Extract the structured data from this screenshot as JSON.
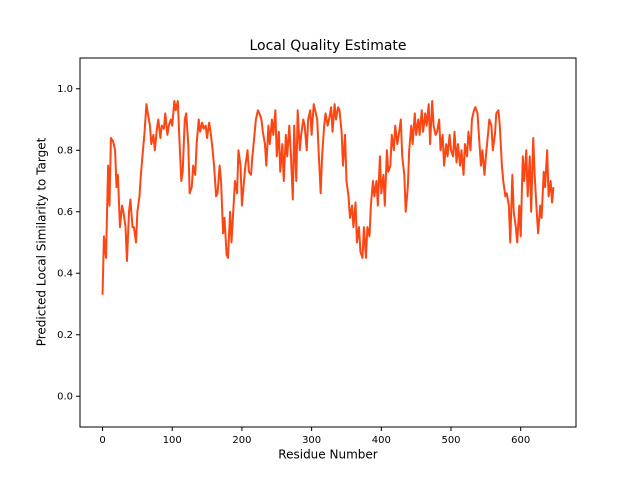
{
  "chart_data": {
    "type": "line",
    "title": "Local Quality Estimate",
    "xlabel": "Residue Number",
    "ylabel": "Predicted Local Similarity to Target",
    "color": "#fc4614",
    "xlim": [
      -32.35,
      679.35
    ],
    "ylim": [
      -0.1,
      1.1
    ],
    "xticks": [
      0,
      100,
      200,
      300,
      400,
      500,
      600
    ],
    "yticks": [
      {
        "value": 0,
        "label": "0.0"
      },
      0.2,
      0.4,
      0.6,
      0.8,
      {
        "value": 1,
        "label": "1.0"
      }
    ],
    "x": [
      0,
      2,
      5,
      8,
      10,
      12,
      15,
      18,
      20,
      22,
      25,
      28,
      30,
      33,
      35,
      38,
      40,
      43,
      45,
      48,
      50,
      53,
      55,
      58,
      60,
      63,
      65,
      68,
      70,
      73,
      75,
      78,
      80,
      83,
      85,
      88,
      90,
      93,
      95,
      98,
      100,
      103,
      105,
      108,
      110,
      113,
      115,
      118,
      120,
      123,
      125,
      128,
      130,
      133,
      135,
      138,
      140,
      143,
      145,
      148,
      150,
      153,
      155,
      158,
      160,
      163,
      165,
      168,
      170,
      173,
      175,
      178,
      180,
      183,
      185,
      188,
      190,
      193,
      195,
      198,
      200,
      203,
      205,
      208,
      210,
      213,
      215,
      218,
      220,
      223,
      225,
      228,
      230,
      233,
      235,
      238,
      240,
      243,
      245,
      248,
      250,
      253,
      255,
      258,
      260,
      263,
      265,
      268,
      270,
      273,
      275,
      278,
      280,
      283,
      285,
      288,
      290,
      293,
      295,
      298,
      300,
      303,
      305,
      308,
      310,
      313,
      315,
      318,
      320,
      323,
      325,
      328,
      330,
      333,
      335,
      338,
      340,
      343,
      345,
      348,
      350,
      353,
      355,
      358,
      360,
      363,
      365,
      368,
      370,
      373,
      375,
      378,
      380,
      383,
      385,
      388,
      390,
      393,
      395,
      398,
      400,
      403,
      405,
      408,
      410,
      413,
      415,
      418,
      420,
      423,
      425,
      428,
      430,
      433,
      435,
      438,
      440,
      443,
      445,
      448,
      450,
      453,
      455,
      458,
      460,
      463,
      465,
      468,
      470,
      473,
      475,
      478,
      480,
      483,
      485,
      488,
      490,
      493,
      495,
      498,
      500,
      503,
      505,
      508,
      510,
      513,
      515,
      518,
      520,
      523,
      525,
      528,
      530,
      533,
      535,
      538,
      540,
      543,
      545,
      548,
      550,
      553,
      555,
      558,
      560,
      563,
      565,
      568,
      570,
      573,
      575,
      578,
      580,
      583,
      585,
      588,
      590,
      593,
      595,
      598,
      600,
      603,
      605,
      608,
      610,
      613,
      615,
      618,
      620,
      623,
      625,
      628,
      630,
      633,
      635,
      638,
      640,
      643,
      645,
      647
    ],
    "values": [
      0.33,
      0.52,
      0.45,
      0.75,
      0.62,
      0.84,
      0.83,
      0.8,
      0.68,
      0.72,
      0.55,
      0.62,
      0.6,
      0.55,
      0.44,
      0.6,
      0.64,
      0.55,
      0.55,
      0.5,
      0.6,
      0.65,
      0.72,
      0.8,
      0.85,
      0.95,
      0.92,
      0.88,
      0.82,
      0.85,
      0.8,
      0.87,
      0.9,
      0.84,
      0.88,
      0.87,
      0.92,
      0.85,
      0.88,
      0.9,
      0.88,
      0.96,
      0.93,
      0.96,
      0.85,
      0.7,
      0.73,
      0.9,
      0.92,
      0.82,
      0.66,
      0.68,
      0.75,
      0.72,
      0.82,
      0.9,
      0.86,
      0.89,
      0.87,
      0.88,
      0.84,
      0.89,
      0.86,
      0.8,
      0.75,
      0.65,
      0.66,
      0.75,
      0.7,
      0.53,
      0.58,
      0.46,
      0.45,
      0.6,
      0.5,
      0.62,
      0.7,
      0.66,
      0.8,
      0.75,
      0.62,
      0.7,
      0.75,
      0.8,
      0.73,
      0.72,
      0.78,
      0.85,
      0.9,
      0.93,
      0.92,
      0.9,
      0.86,
      0.82,
      0.75,
      0.88,
      0.82,
      0.9,
      0.85,
      0.93,
      0.78,
      0.86,
      0.73,
      0.82,
      0.7,
      0.85,
      0.78,
      0.88,
      0.8,
      0.64,
      0.88,
      0.7,
      0.93,
      0.8,
      0.85,
      0.9,
      0.88,
      0.8,
      0.9,
      0.93,
      0.85,
      0.95,
      0.93,
      0.9,
      0.8,
      0.66,
      0.78,
      0.88,
      0.92,
      0.88,
      0.9,
      0.94,
      0.86,
      0.95,
      0.9,
      0.94,
      0.93,
      0.86,
      0.75,
      0.85,
      0.7,
      0.65,
      0.58,
      0.62,
      0.55,
      0.63,
      0.5,
      0.55,
      0.47,
      0.45,
      0.55,
      0.45,
      0.55,
      0.52,
      0.62,
      0.7,
      0.65,
      0.7,
      0.62,
      0.78,
      0.66,
      0.72,
      0.62,
      0.8,
      0.73,
      0.75,
      0.85,
      0.8,
      0.88,
      0.82,
      0.85,
      0.9,
      0.78,
      0.72,
      0.6,
      0.68,
      0.8,
      0.88,
      0.82,
      0.92,
      0.85,
      0.9,
      0.85,
      0.93,
      0.86,
      0.92,
      0.88,
      0.95,
      0.82,
      0.96,
      0.88,
      0.85,
      0.86,
      0.9,
      0.8,
      0.85,
      0.75,
      0.82,
      0.78,
      0.85,
      0.8,
      0.78,
      0.86,
      0.76,
      0.82,
      0.75,
      0.8,
      0.72,
      0.82,
      0.78,
      0.86,
      0.8,
      0.9,
      0.93,
      0.94,
      0.92,
      0.85,
      0.75,
      0.8,
      0.72,
      0.78,
      0.85,
      0.9,
      0.88,
      0.8,
      0.85,
      0.92,
      0.93,
      0.88,
      0.75,
      0.7,
      0.65,
      0.66,
      0.62,
      0.5,
      0.72,
      0.6,
      0.55,
      0.5,
      0.62,
      0.52,
      0.78,
      0.7,
      0.8,
      0.65,
      0.78,
      0.6,
      0.84,
      0.72,
      0.6,
      0.53,
      0.62,
      0.58,
      0.73,
      0.68,
      0.8,
      0.65,
      0.7,
      0.63,
      0.68
    ]
  }
}
